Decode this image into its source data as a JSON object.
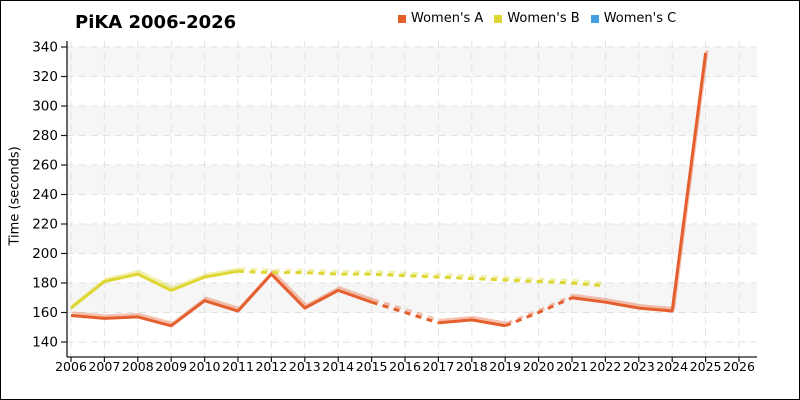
{
  "chart_data": {
    "type": "line",
    "title": "PiKA 2006-2026",
    "xlabel": "",
    "ylabel": "Time (seconds)",
    "ylim": [
      140,
      340
    ],
    "y_ticks": [
      140,
      160,
      180,
      200,
      220,
      240,
      260,
      280,
      300,
      320,
      340
    ],
    "x_ticks": [
      2006,
      2007,
      2008,
      2009,
      2010,
      2011,
      2012,
      2013,
      2014,
      2015,
      2016,
      2017,
      2018,
      2019,
      2020,
      2021,
      2022,
      2023,
      2024,
      2025,
      2026
    ],
    "grid": "dashed gridlines both axes, alternating horizontal shaded bands",
    "legend_position": "top-center",
    "colors": {
      "grid": "#e2e2e2",
      "band": "#f6f6f6",
      "axis": "#1a1a1a",
      "text": "#000000"
    },
    "series": [
      {
        "name": "Women's A",
        "color": "#e45f2d",
        "segments": [
          {
            "style": "solid",
            "points": [
              [
                2006,
                158
              ],
              [
                2007,
                156
              ],
              [
                2008,
                157
              ],
              [
                2009,
                151
              ],
              [
                2010,
                168
              ],
              [
                2011,
                161
              ],
              [
                2012,
                186
              ],
              [
                2013,
                163
              ],
              [
                2014,
                175
              ],
              [
                2015,
                167
              ]
            ]
          },
          {
            "style": "dashed",
            "points": [
              [
                2015,
                167
              ],
              [
                2016,
                160
              ],
              [
                2017,
                153
              ]
            ]
          },
          {
            "style": "solid",
            "points": [
              [
                2017,
                153
              ],
              [
                2018,
                155
              ],
              [
                2019,
                151
              ]
            ]
          },
          {
            "style": "dashed",
            "points": [
              [
                2019,
                151
              ],
              [
                2020,
                160
              ],
              [
                2021,
                170
              ]
            ]
          },
          {
            "style": "solid",
            "points": [
              [
                2021,
                170
              ],
              [
                2022,
                167
              ],
              [
                2023,
                163
              ],
              [
                2024,
                161
              ],
              [
                2025,
                336
              ]
            ]
          }
        ]
      },
      {
        "name": "Women's B",
        "color": "#ded733",
        "segments": [
          {
            "style": "solid",
            "points": [
              [
                2006,
                163
              ],
              [
                2007,
                181
              ],
              [
                2008,
                186
              ],
              [
                2009,
                175
              ],
              [
                2010,
                184
              ],
              [
                2011,
                188
              ]
            ]
          },
          {
            "style": "dashed",
            "points": [
              [
                2011,
                188
              ],
              [
                2012,
                187
              ],
              [
                2013,
                187
              ],
              [
                2014,
                186
              ],
              [
                2015,
                186
              ],
              [
                2016,
                185
              ],
              [
                2017,
                184
              ],
              [
                2018,
                183
              ],
              [
                2019,
                182
              ],
              [
                2020,
                181
              ],
              [
                2021,
                180
              ],
              [
                2022,
                178
              ]
            ]
          }
        ]
      },
      {
        "name": "Women's C",
        "color": "#3f9fe0",
        "segments": []
      }
    ]
  }
}
